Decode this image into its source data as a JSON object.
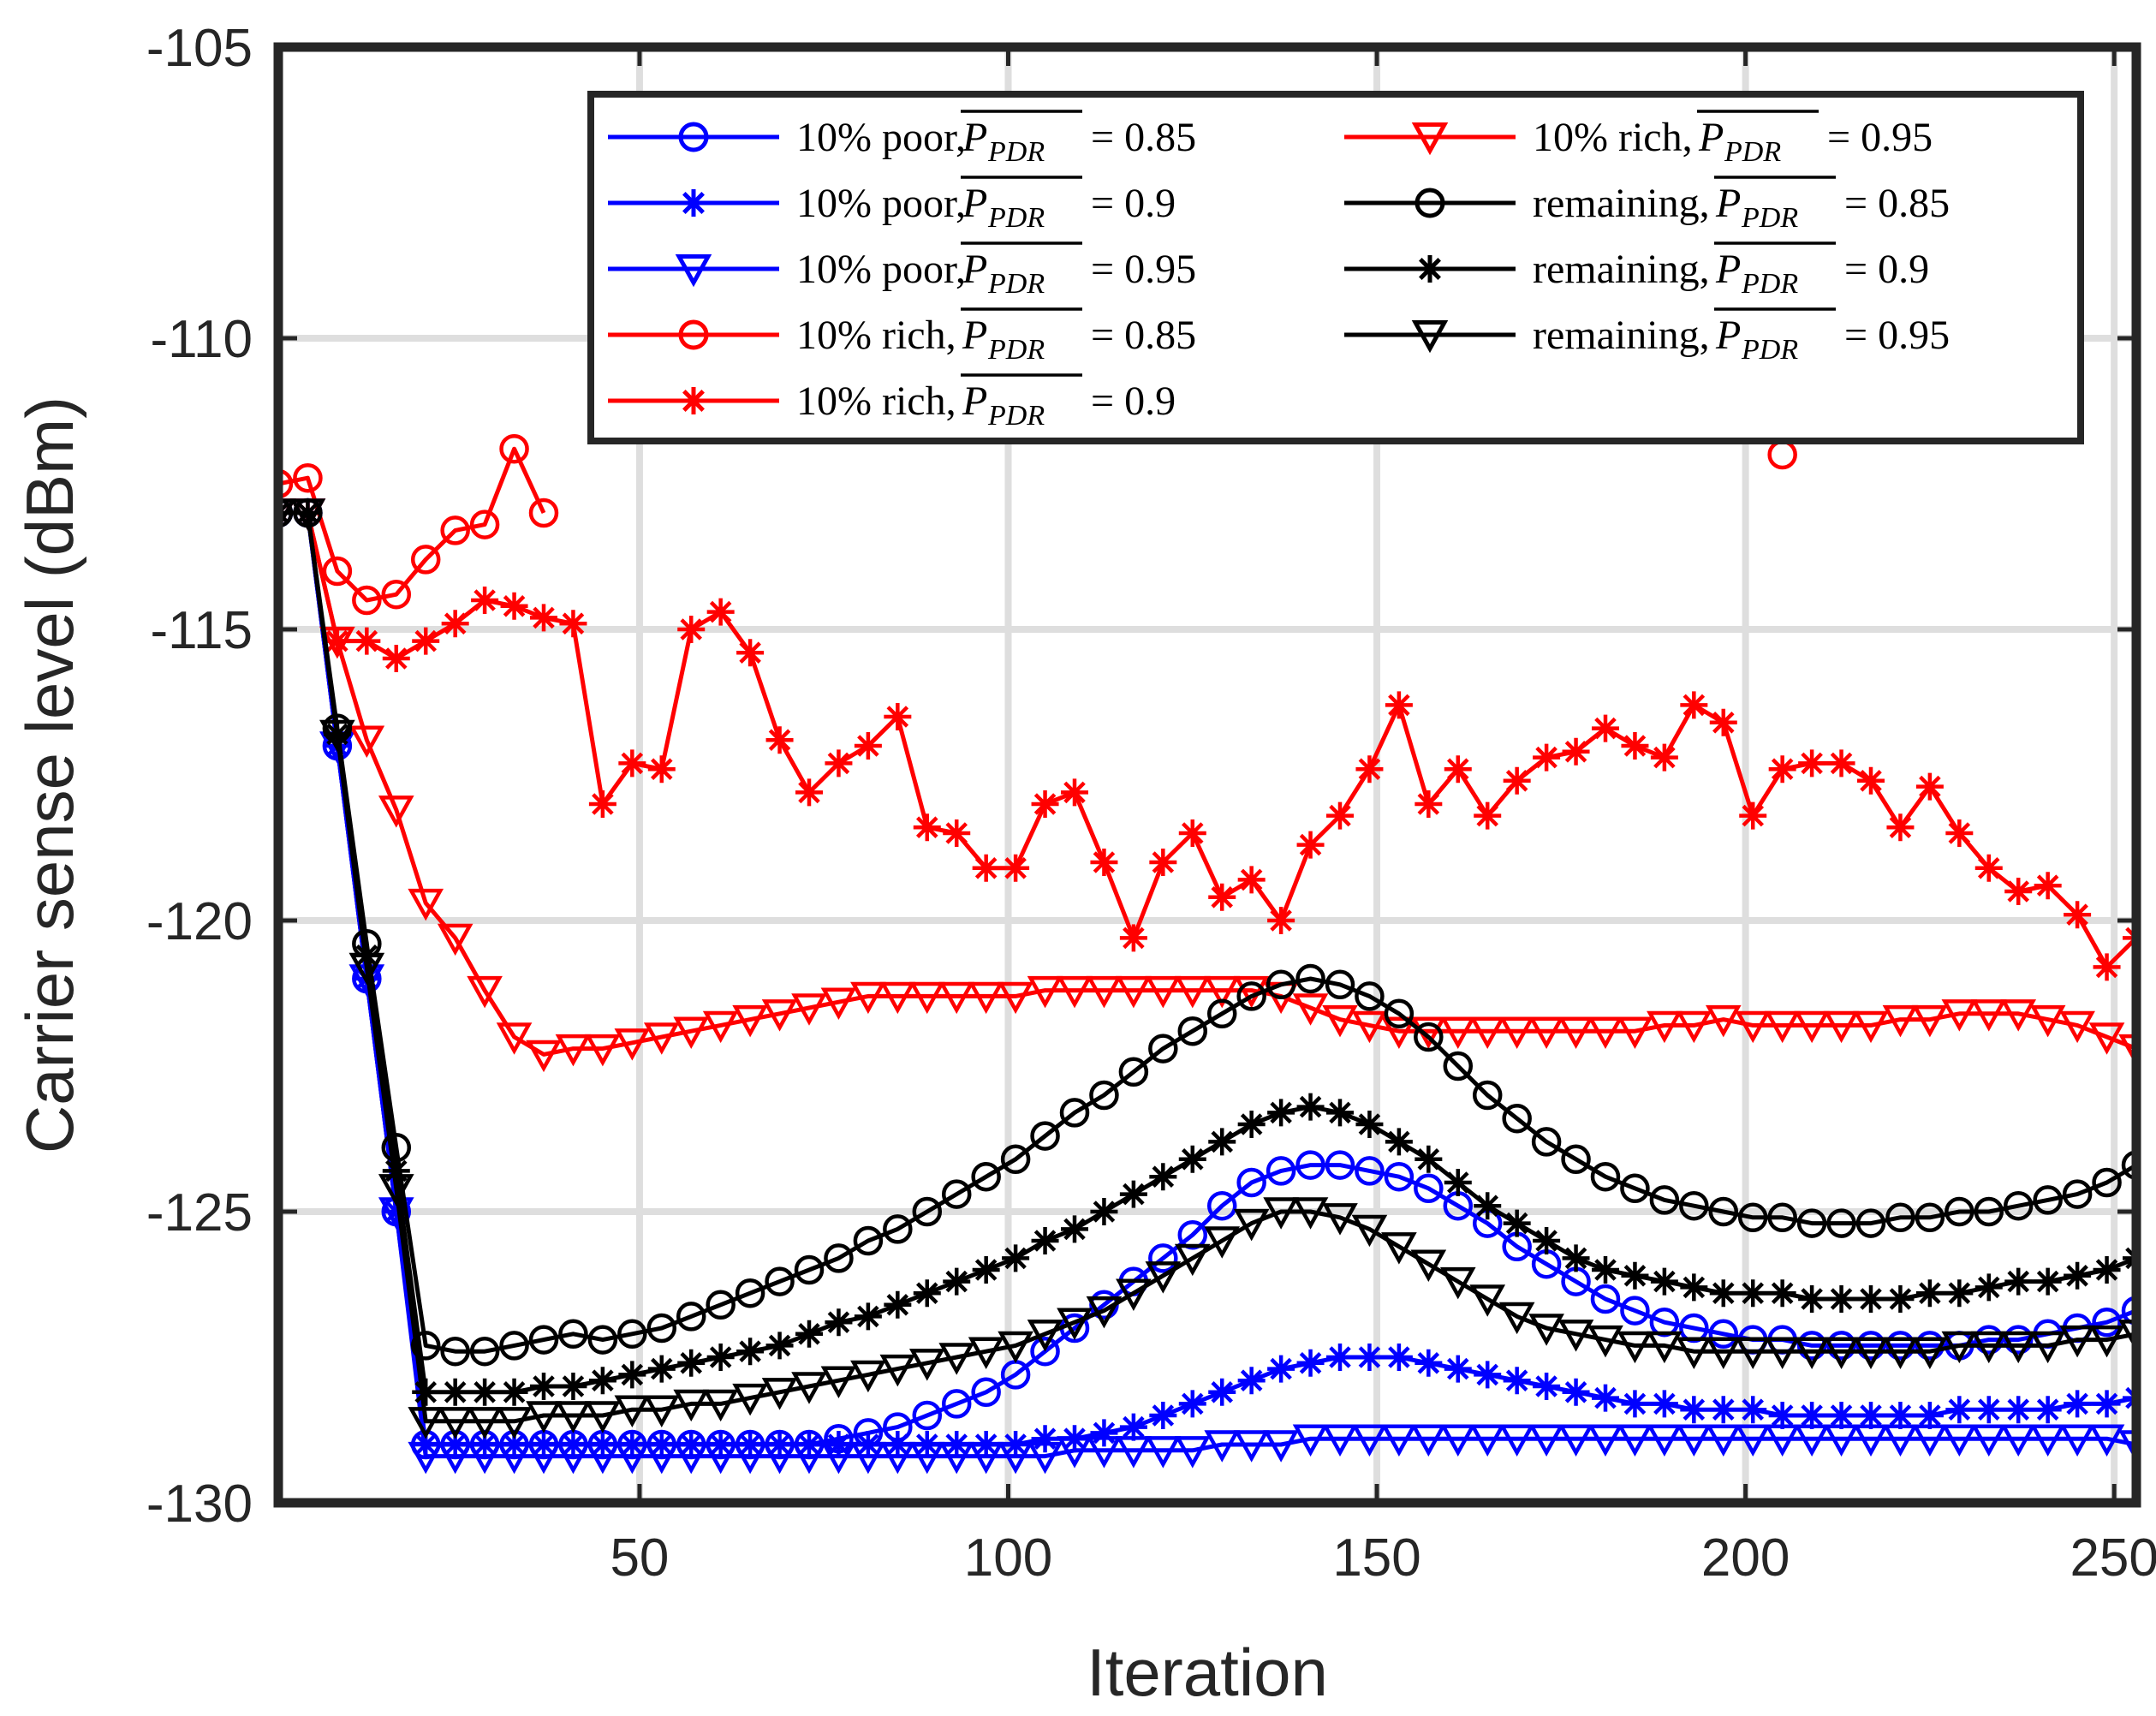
{
  "chart_data": {
    "type": "line",
    "title": "",
    "xlabel": "Iteration",
    "ylabel": "Carrier sense level (dBm)",
    "xlim": [
      1,
      253
    ],
    "ylim": [
      -130,
      -105
    ],
    "xticks": [
      50,
      100,
      150,
      200,
      250
    ],
    "yticks": [
      -130,
      -125,
      -120,
      -115,
      -110,
      -105
    ],
    "grid": true,
    "legend_position": "top-right",
    "legend_symbol": "P",
    "legend_subscript": "PDR",
    "colors": {
      "poor": "#0000ff",
      "rich": "#ff0000",
      "remaining": "#000000"
    },
    "series": [
      {
        "name": "10% poor, P_PDR = 0.85",
        "label_text": "10% poor,",
        "pdr_value": "= 0.85",
        "group": "poor",
        "marker": "circle",
        "x": [
          1,
          5,
          9,
          13,
          17,
          21,
          25,
          29,
          33,
          37,
          41,
          45,
          49,
          53,
          57,
          61,
          65,
          69,
          73,
          77,
          81,
          85,
          89,
          93,
          97,
          101,
          105,
          109,
          113,
          117,
          121,
          125,
          129,
          133,
          137,
          141,
          145,
          149,
          153,
          157,
          161,
          165,
          169,
          173,
          177,
          181,
          185,
          189,
          193,
          197,
          201,
          205,
          209,
          213,
          217,
          221,
          225,
          229,
          233,
          237,
          241,
          245,
          249,
          253
        ],
        "y": [
          -113,
          -113,
          -117,
          -121,
          -125,
          -129,
          -129,
          -129,
          -129,
          -129,
          -129,
          -129,
          -129,
          -129,
          -129,
          -129,
          -129,
          -129,
          -129,
          -128.9,
          -128.8,
          -128.7,
          -128.5,
          -128.3,
          -128.1,
          -127.8,
          -127.4,
          -127.0,
          -126.6,
          -126.2,
          -125.8,
          -125.4,
          -124.9,
          -124.5,
          -124.3,
          -124.2,
          -124.2,
          -124.3,
          -124.4,
          -124.6,
          -124.9,
          -125.2,
          -125.6,
          -125.9,
          -126.2,
          -126.5,
          -126.7,
          -126.9,
          -127.0,
          -127.1,
          -127.2,
          -127.2,
          -127.3,
          -127.3,
          -127.3,
          -127.3,
          -127.3,
          -127.3,
          -127.2,
          -127.2,
          -127.1,
          -127.0,
          -126.9,
          -126.7
        ]
      },
      {
        "name": "10% poor, P_PDR = 0.9",
        "label_text": "10% poor,",
        "pdr_value": "= 0.9",
        "group": "poor",
        "marker": "asterisk",
        "x": [
          1,
          5,
          9,
          13,
          17,
          21,
          25,
          29,
          33,
          37,
          41,
          45,
          49,
          53,
          57,
          61,
          65,
          69,
          73,
          77,
          81,
          85,
          89,
          93,
          97,
          101,
          105,
          109,
          113,
          117,
          121,
          125,
          129,
          133,
          137,
          141,
          145,
          149,
          153,
          157,
          161,
          165,
          169,
          173,
          177,
          181,
          185,
          189,
          193,
          197,
          201,
          205,
          209,
          213,
          217,
          221,
          225,
          229,
          233,
          237,
          241,
          245,
          249,
          253
        ],
        "y": [
          -113,
          -113,
          -117,
          -121,
          -125,
          -129,
          -129,
          -129,
          -129,
          -129,
          -129,
          -129,
          -129,
          -129,
          -129,
          -129,
          -129,
          -129,
          -129,
          -129,
          -129,
          -129,
          -129,
          -129,
          -129,
          -129,
          -128.9,
          -128.9,
          -128.8,
          -128.7,
          -128.5,
          -128.3,
          -128.1,
          -127.9,
          -127.7,
          -127.6,
          -127.5,
          -127.5,
          -127.5,
          -127.6,
          -127.7,
          -127.8,
          -127.9,
          -128.0,
          -128.1,
          -128.2,
          -128.3,
          -128.3,
          -128.4,
          -128.4,
          -128.4,
          -128.5,
          -128.5,
          -128.5,
          -128.5,
          -128.5,
          -128.5,
          -128.4,
          -128.4,
          -128.4,
          -128.4,
          -128.3,
          -128.3,
          -128.2
        ]
      },
      {
        "name": "10% poor, P_PDR = 0.95",
        "label_text": "10% poor,",
        "pdr_value": "= 0.95",
        "group": "poor",
        "marker": "triangle",
        "x": [
          1,
          5,
          9,
          13,
          17,
          21,
          25,
          29,
          33,
          37,
          41,
          45,
          49,
          53,
          57,
          61,
          65,
          69,
          73,
          77,
          81,
          85,
          89,
          93,
          97,
          101,
          105,
          109,
          113,
          117,
          121,
          125,
          129,
          133,
          137,
          141,
          145,
          149,
          153,
          157,
          161,
          165,
          169,
          173,
          177,
          181,
          185,
          189,
          193,
          197,
          201,
          205,
          209,
          213,
          217,
          221,
          225,
          229,
          233,
          237,
          241,
          245,
          249,
          253
        ],
        "y": [
          -113,
          -113,
          -117,
          -121,
          -125,
          -129.2,
          -129.2,
          -129.2,
          -129.2,
          -129.2,
          -129.2,
          -129.2,
          -129.2,
          -129.2,
          -129.2,
          -129.2,
          -129.2,
          -129.2,
          -129.2,
          -129.2,
          -129.2,
          -129.2,
          -129.2,
          -129.2,
          -129.2,
          -129.2,
          -129.2,
          -129.1,
          -129.1,
          -129.1,
          -129.1,
          -129.1,
          -129.0,
          -129.0,
          -129.0,
          -128.9,
          -128.9,
          -128.9,
          -128.9,
          -128.9,
          -128.9,
          -128.9,
          -128.9,
          -128.9,
          -128.9,
          -128.9,
          -128.9,
          -128.9,
          -128.9,
          -128.9,
          -128.9,
          -128.9,
          -128.9,
          -128.9,
          -128.9,
          -128.9,
          -128.9,
          -128.9,
          -128.9,
          -128.9,
          -128.9,
          -128.9,
          -128.9,
          -129.0
        ]
      },
      {
        "name": "10% rich, P_PDR = 0.85",
        "label_text": "10% rich,",
        "pdr_value": "= 0.85",
        "group": "rich",
        "marker": "circle",
        "segments": [
          {
            "x": [
              1,
              5,
              9,
              13,
              17,
              21,
              25,
              29,
              33,
              37
            ],
            "y": [
              -112.5,
              -112.4,
              -114.0,
              -114.5,
              -114.4,
              -113.8,
              -113.3,
              -113.2,
              -111.9,
              -113.0
            ]
          },
          {
            "x": [
              205
            ],
            "y": [
              -112.0
            ]
          }
        ]
      },
      {
        "name": "10% rich, P_PDR = 0.9",
        "label_text": "10% rich,",
        "pdr_value": "= 0.9",
        "group": "rich",
        "marker": "asterisk",
        "x": [
          1,
          5,
          9,
          13,
          17,
          21,
          25,
          29,
          33,
          37,
          41,
          45,
          49,
          53,
          57,
          61,
          65,
          69,
          73,
          77,
          81,
          85,
          89,
          93,
          97,
          101,
          105,
          109,
          113,
          117,
          121,
          125,
          129,
          133,
          137,
          141,
          145,
          149,
          153,
          157,
          161,
          165,
          169,
          173,
          177,
          181,
          185,
          189,
          193,
          197,
          201,
          205,
          209,
          213,
          217,
          221,
          225,
          229,
          233,
          237,
          241,
          245,
          249,
          253
        ],
        "y": [
          -113,
          -113,
          -115.2,
          -115.2,
          -115.5,
          -115.2,
          -114.9,
          -114.5,
          -114.6,
          -114.8,
          -114.9,
          -118.0,
          -117.3,
          -117.4,
          -115.0,
          -114.7,
          -115.4,
          -116.9,
          -117.8,
          -117.3,
          -117.0,
          -116.5,
          -118.4,
          -118.5,
          -119.1,
          -119.1,
          -118.0,
          -117.8,
          -119.0,
          -120.3,
          -119.0,
          -118.5,
          -119.6,
          -119.3,
          -120.0,
          -118.7,
          -118.2,
          -117.4,
          -116.3,
          -118.0,
          -117.4,
          -118.2,
          -117.6,
          -117.2,
          -117.1,
          -116.7,
          -117.0,
          -117.2,
          -116.3,
          -116.6,
          -118.2,
          -117.4,
          -117.3,
          -117.3,
          -117.6,
          -118.4,
          -117.7,
          -118.5,
          -119.1,
          -119.5,
          -119.4,
          -119.9,
          -120.8,
          -120.3
        ]
      },
      {
        "name": "10% rich, P_PDR = 0.95",
        "label_text": "10% rich,",
        "pdr_value": "= 0.95",
        "group": "rich",
        "marker": "triangle",
        "x": [
          1,
          5,
          9,
          13,
          17,
          21,
          25,
          29,
          33,
          37,
          41,
          45,
          49,
          53,
          57,
          61,
          65,
          69,
          73,
          77,
          81,
          85,
          89,
          93,
          97,
          101,
          105,
          109,
          113,
          117,
          121,
          125,
          129,
          133,
          137,
          141,
          145,
          149,
          153,
          157,
          161,
          165,
          169,
          173,
          177,
          181,
          185,
          189,
          193,
          197,
          201,
          205,
          209,
          213,
          217,
          221,
          225,
          229,
          233,
          237,
          241,
          245,
          249,
          253
        ],
        "y": [
          -113,
          -113,
          -115.2,
          -116.9,
          -118.1,
          -119.7,
          -120.3,
          -121.2,
          -122.0,
          -122.3,
          -122.2,
          -122.2,
          -122.1,
          -122.0,
          -121.9,
          -121.8,
          -121.7,
          -121.6,
          -121.5,
          -121.4,
          -121.3,
          -121.3,
          -121.3,
          -121.3,
          -121.3,
          -121.3,
          -121.2,
          -121.2,
          -121.2,
          -121.2,
          -121.2,
          -121.2,
          -121.2,
          -121.2,
          -121.3,
          -121.5,
          -121.7,
          -121.8,
          -121.9,
          -121.9,
          -121.9,
          -121.9,
          -121.9,
          -121.9,
          -121.9,
          -121.9,
          -121.9,
          -121.8,
          -121.8,
          -121.7,
          -121.8,
          -121.8,
          -121.8,
          -121.8,
          -121.8,
          -121.7,
          -121.7,
          -121.6,
          -121.6,
          -121.6,
          -121.7,
          -121.8,
          -122.0,
          -122.2
        ]
      },
      {
        "name": "remaining, P_PDR = 0.85",
        "label_text": "remaining,",
        "pdr_value": "= 0.85",
        "group": "remaining",
        "marker": "circle",
        "x": [
          1,
          5,
          9,
          13,
          17,
          21,
          25,
          29,
          33,
          37,
          41,
          45,
          49,
          53,
          57,
          61,
          65,
          69,
          73,
          77,
          81,
          85,
          89,
          93,
          97,
          101,
          105,
          109,
          113,
          117,
          121,
          125,
          129,
          133,
          137,
          141,
          145,
          149,
          153,
          157,
          161,
          165,
          169,
          173,
          177,
          181,
          185,
          189,
          193,
          197,
          201,
          205,
          209,
          213,
          217,
          221,
          225,
          229,
          233,
          237,
          241,
          245,
          249,
          253
        ],
        "y": [
          -113,
          -113,
          -116.7,
          -120.4,
          -123.9,
          -127.3,
          -127.4,
          -127.4,
          -127.3,
          -127.2,
          -127.1,
          -127.2,
          -127.1,
          -127.0,
          -126.8,
          -126.6,
          -126.4,
          -126.2,
          -126.0,
          -125.8,
          -125.5,
          -125.3,
          -125.0,
          -124.7,
          -124.4,
          -124.1,
          -123.7,
          -123.3,
          -123.0,
          -122.6,
          -122.2,
          -121.9,
          -121.6,
          -121.3,
          -121.1,
          -121.0,
          -121.1,
          -121.3,
          -121.6,
          -122.0,
          -122.5,
          -123.0,
          -123.4,
          -123.8,
          -124.1,
          -124.4,
          -124.6,
          -124.8,
          -124.9,
          -125.0,
          -125.1,
          -125.1,
          -125.2,
          -125.2,
          -125.2,
          -125.1,
          -125.1,
          -125.0,
          -125.0,
          -124.9,
          -124.8,
          -124.7,
          -124.5,
          -124.2
        ]
      },
      {
        "name": "remaining, P_PDR = 0.9",
        "label_text": "remaining,",
        "pdr_value": "= 0.9",
        "group": "remaining",
        "marker": "asterisk",
        "x": [
          1,
          5,
          9,
          13,
          17,
          21,
          25,
          29,
          33,
          37,
          41,
          45,
          49,
          53,
          57,
          61,
          65,
          69,
          73,
          77,
          81,
          85,
          89,
          93,
          97,
          101,
          105,
          109,
          113,
          117,
          121,
          125,
          129,
          133,
          137,
          141,
          145,
          149,
          153,
          157,
          161,
          165,
          169,
          173,
          177,
          181,
          185,
          189,
          193,
          197,
          201,
          205,
          209,
          213,
          217,
          221,
          225,
          229,
          233,
          237,
          241,
          245,
          249,
          253
        ],
        "y": [
          -113,
          -113,
          -116.8,
          -120.6,
          -124.3,
          -128.1,
          -128.1,
          -128.1,
          -128.1,
          -128.0,
          -128.0,
          -127.9,
          -127.8,
          -127.7,
          -127.6,
          -127.5,
          -127.4,
          -127.3,
          -127.1,
          -126.9,
          -126.8,
          -126.6,
          -126.4,
          -126.2,
          -126.0,
          -125.8,
          -125.5,
          -125.3,
          -125.0,
          -124.7,
          -124.4,
          -124.1,
          -123.8,
          -123.5,
          -123.3,
          -123.2,
          -123.3,
          -123.5,
          -123.8,
          -124.1,
          -124.5,
          -124.9,
          -125.2,
          -125.5,
          -125.8,
          -126.0,
          -126.1,
          -126.2,
          -126.3,
          -126.4,
          -126.4,
          -126.4,
          -126.5,
          -126.5,
          -126.5,
          -126.5,
          -126.4,
          -126.4,
          -126.3,
          -126.2,
          -126.2,
          -126.1,
          -126.0,
          -125.8
        ]
      },
      {
        "name": "remaining, P_PDR = 0.95",
        "label_text": "remaining,",
        "pdr_value": "= 0.95",
        "group": "remaining",
        "marker": "triangle",
        "x": [
          1,
          5,
          9,
          13,
          17,
          21,
          25,
          29,
          33,
          37,
          41,
          45,
          49,
          53,
          57,
          61,
          65,
          69,
          73,
          77,
          81,
          85,
          89,
          93,
          97,
          101,
          105,
          109,
          113,
          117,
          121,
          125,
          129,
          133,
          137,
          141,
          145,
          149,
          153,
          157,
          161,
          165,
          169,
          173,
          177,
          181,
          185,
          189,
          193,
          197,
          201,
          205,
          209,
          213,
          217,
          221,
          225,
          229,
          233,
          237,
          241,
          245,
          249,
          253
        ],
        "y": [
          -113,
          -113,
          -116.8,
          -120.8,
          -124.6,
          -128.6,
          -128.6,
          -128.6,
          -128.6,
          -128.5,
          -128.5,
          -128.5,
          -128.4,
          -128.4,
          -128.3,
          -128.3,
          -128.2,
          -128.1,
          -128.0,
          -127.9,
          -127.8,
          -127.7,
          -127.6,
          -127.5,
          -127.4,
          -127.3,
          -127.1,
          -126.9,
          -126.7,
          -126.4,
          -126.1,
          -125.8,
          -125.5,
          -125.2,
          -125.0,
          -125.0,
          -125.1,
          -125.3,
          -125.6,
          -125.9,
          -126.2,
          -126.5,
          -126.8,
          -127.0,
          -127.1,
          -127.2,
          -127.3,
          -127.3,
          -127.4,
          -127.4,
          -127.4,
          -127.4,
          -127.4,
          -127.4,
          -127.4,
          -127.4,
          -127.4,
          -127.3,
          -127.3,
          -127.3,
          -127.3,
          -127.2,
          -127.2,
          -127.1
        ]
      }
    ]
  }
}
